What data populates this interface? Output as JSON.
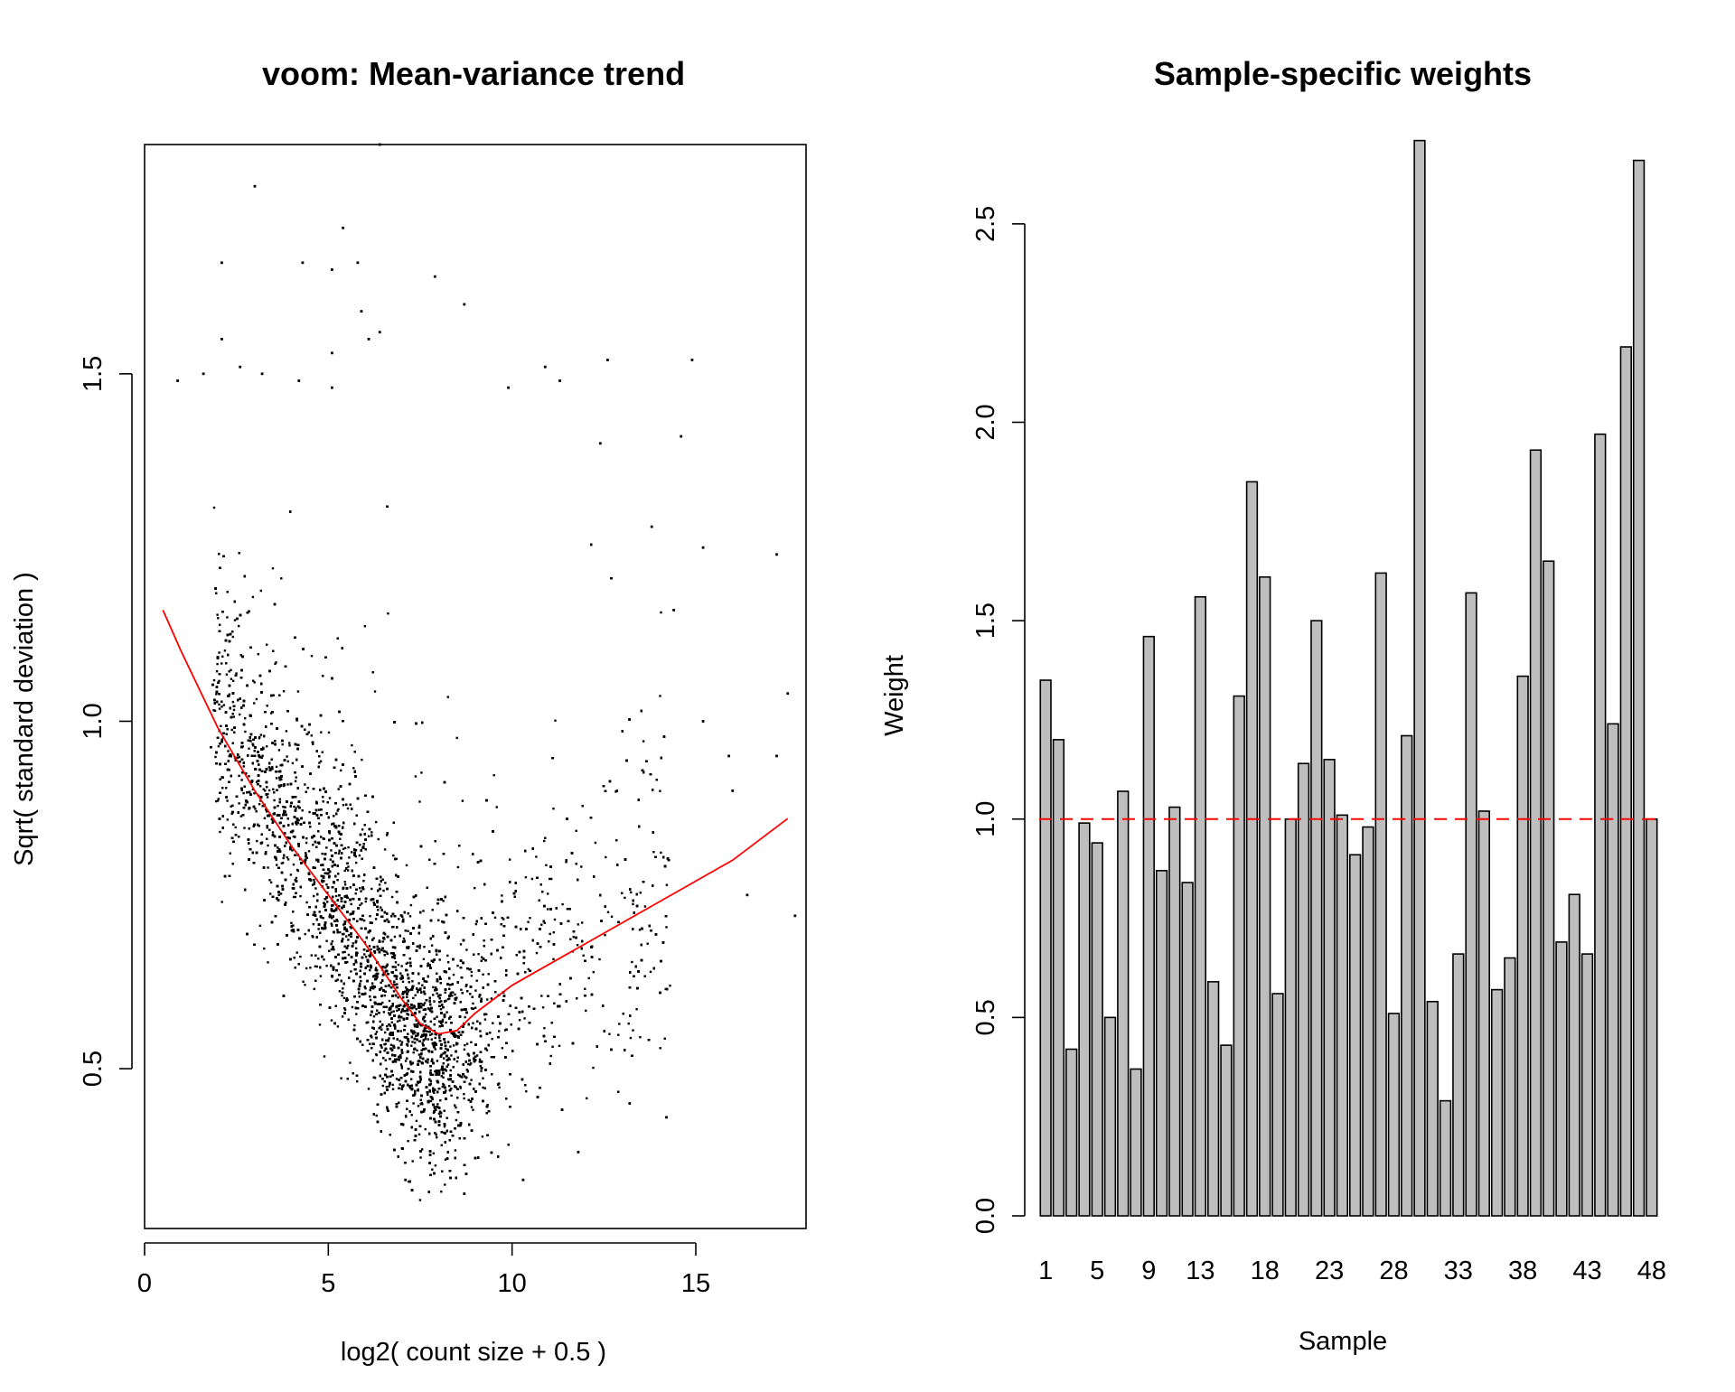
{
  "colors": {
    "points": "#000000",
    "trend": "#ff0000",
    "bars": "#bebebe",
    "bar_outline": "#000000",
    "reference_line": "#ff0000",
    "background": "#ffffff"
  },
  "chart_data": [
    {
      "type": "scatter",
      "title": "voom: Mean-variance trend",
      "xlabel": "log2( count size + 0.5 )",
      "ylabel": "Sqrt( standard deviation )",
      "xlim": [
        0,
        18
      ],
      "ylim": [
        0.27,
        1.83
      ],
      "xticks": [
        "0",
        "5",
        "10",
        "15"
      ],
      "yticks": [
        "0.5",
        "1.0",
        "1.5"
      ],
      "grid": false,
      "point_count_approx": 15000,
      "trend_color": "#ff0000",
      "trend_line": {
        "x": [
          0.5,
          1.0,
          2.0,
          3.0,
          4.0,
          5.0,
          6.0,
          7.0,
          7.5,
          8.0,
          8.5,
          9.0,
          10.0,
          11.0,
          12.0,
          13.0,
          14.0,
          15.0,
          16.0,
          17.5
        ],
        "y": [
          1.16,
          1.1,
          0.99,
          0.9,
          0.82,
          0.75,
          0.68,
          0.6,
          0.565,
          0.55,
          0.555,
          0.58,
          0.62,
          0.65,
          0.68,
          0.71,
          0.74,
          0.77,
          0.8,
          0.86
        ]
      },
      "sample_points": [
        {
          "x": 6.4,
          "y": 1.83
        },
        {
          "x": 3.0,
          "y": 1.77
        },
        {
          "x": 5.4,
          "y": 1.71
        },
        {
          "x": 2.1,
          "y": 1.66
        },
        {
          "x": 4.3,
          "y": 1.66
        },
        {
          "x": 5.1,
          "y": 1.65
        },
        {
          "x": 5.8,
          "y": 1.66
        },
        {
          "x": 7.9,
          "y": 1.64
        },
        {
          "x": 8.7,
          "y": 1.6
        },
        {
          "x": 5.9,
          "y": 1.59
        },
        {
          "x": 6.4,
          "y": 1.56
        },
        {
          "x": 6.1,
          "y": 1.55
        },
        {
          "x": 2.1,
          "y": 1.55
        },
        {
          "x": 5.1,
          "y": 1.53
        },
        {
          "x": 2.6,
          "y": 1.51
        },
        {
          "x": 1.6,
          "y": 1.5
        },
        {
          "x": 3.2,
          "y": 1.5
        },
        {
          "x": 0.9,
          "y": 1.49
        },
        {
          "x": 4.2,
          "y": 1.49
        },
        {
          "x": 5.1,
          "y": 1.48
        },
        {
          "x": 10.9,
          "y": 1.51
        },
        {
          "x": 12.6,
          "y": 1.52
        },
        {
          "x": 14.9,
          "y": 1.52
        },
        {
          "x": 9.9,
          "y": 1.48
        },
        {
          "x": 11.3,
          "y": 1.49
        },
        {
          "x": 14.6,
          "y": 1.41
        },
        {
          "x": 12.4,
          "y": 1.4
        },
        {
          "x": 17.2,
          "y": 1.24
        },
        {
          "x": 15.2,
          "y": 1.25
        },
        {
          "x": 13.8,
          "y": 1.28
        },
        {
          "x": 14.4,
          "y": 1.16
        },
        {
          "x": 17.5,
          "y": 1.04
        },
        {
          "x": 17.2,
          "y": 0.95
        },
        {
          "x": 15.9,
          "y": 0.95
        },
        {
          "x": 15.2,
          "y": 1.0
        },
        {
          "x": 16.0,
          "y": 0.9
        },
        {
          "x": 16.4,
          "y": 0.75
        },
        {
          "x": 17.7,
          "y": 0.72
        },
        {
          "x": 14.2,
          "y": 0.43
        },
        {
          "x": 8.7,
          "y": 0.32
        },
        {
          "x": 7.1,
          "y": 0.34
        },
        {
          "x": 10.3,
          "y": 0.34
        },
        {
          "x": 11.8,
          "y": 0.38
        },
        {
          "x": 13.2,
          "y": 0.45
        }
      ]
    },
    {
      "type": "bar",
      "title": "Sample-specific weights",
      "xlabel": "Sample",
      "ylabel": "Weight",
      "ylim": [
        0,
        2.7
      ],
      "yticks": [
        "0.0",
        "0.5",
        "1.0",
        "1.5",
        "2.0",
        "2.5"
      ],
      "tick_labels": [
        "1",
        "5",
        "9",
        "13",
        "18",
        "23",
        "28",
        "33",
        "38",
        "43",
        "48"
      ],
      "tick_positions": [
        1,
        5,
        9,
        13,
        18,
        23,
        28,
        33,
        38,
        43,
        48
      ],
      "reference_line": 1.0,
      "grid": false,
      "categories": [
        "1",
        "2",
        "3",
        "4",
        "5",
        "6",
        "7",
        "8",
        "9",
        "10",
        "11",
        "12",
        "13",
        "14",
        "15",
        "16",
        "17",
        "18",
        "19",
        "20",
        "21",
        "22",
        "23",
        "24",
        "25",
        "26",
        "27",
        "28",
        "29",
        "30",
        "31",
        "32",
        "33",
        "34",
        "35",
        "36",
        "37",
        "38",
        "39",
        "40",
        "41",
        "42",
        "43",
        "44",
        "45",
        "46",
        "47",
        "48"
      ],
      "values": [
        1.35,
        1.2,
        0.42,
        0.99,
        0.94,
        0.5,
        1.07,
        0.37,
        1.46,
        0.87,
        1.03,
        0.84,
        1.56,
        0.59,
        0.43,
        1.31,
        1.85,
        1.61,
        0.56,
        1.0,
        1.14,
        1.5,
        1.15,
        1.01,
        0.91,
        0.98,
        1.62,
        0.51,
        1.21,
        2.71,
        0.54,
        0.29,
        0.66,
        1.57,
        1.02,
        0.57,
        0.65,
        1.36,
        1.93,
        1.65,
        0.69,
        0.81,
        0.66,
        1.97,
        1.24,
        2.19,
        2.66,
        1.0
      ]
    }
  ]
}
